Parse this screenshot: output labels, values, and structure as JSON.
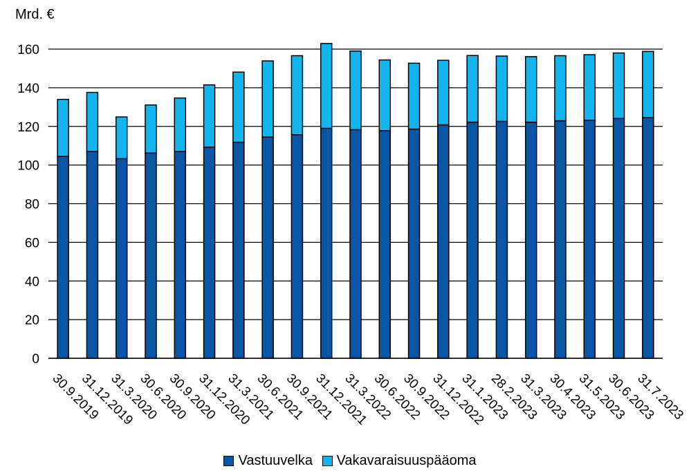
{
  "chart_data": {
    "type": "bar",
    "stacked": true,
    "ylabel": "Mrd. €",
    "ylim": [
      0,
      160
    ],
    "yticks": [
      0,
      20,
      40,
      60,
      80,
      100,
      120,
      140,
      160
    ],
    "grid": true,
    "legend_position": "bottom",
    "categories": [
      "30.9.2019",
      "31.12.2019",
      "31.3.2020",
      "30.6.2020",
      "30.9.2020",
      "31.12.2020",
      "31.3.2021",
      "30.6.2021",
      "30.9.2021",
      "31.12.2021",
      "31.3.2022",
      "30.6.2022",
      "30.9.2022",
      "31.12.2022",
      "31.1.2023",
      "28.2.2023",
      "31.3.2023",
      "30.4.2023",
      "31.5.2023",
      "30.6.2023",
      "31.7.2023"
    ],
    "series": [
      {
        "name": "Vastuuvelka",
        "color": "#0b56a4",
        "values": [
          104.5,
          107,
          103.3,
          106.2,
          107,
          109.3,
          111.8,
          114.5,
          115.7,
          119,
          118.3,
          117.8,
          118.6,
          120.8,
          122.2,
          122.6,
          122.2,
          122.9,
          123.2,
          124.1,
          124.6
        ]
      },
      {
        "name": "Vakavaraisuuspääoma",
        "color": "#14b4ec",
        "values": [
          29.5,
          30.6,
          21.6,
          24.9,
          27.7,
          32.2,
          36.3,
          39.4,
          40.9,
          43.9,
          40.7,
          36.6,
          34.1,
          33.4,
          34.5,
          33.8,
          33.9,
          33.7,
          33.9,
          33.9,
          34.2
        ]
      }
    ]
  }
}
